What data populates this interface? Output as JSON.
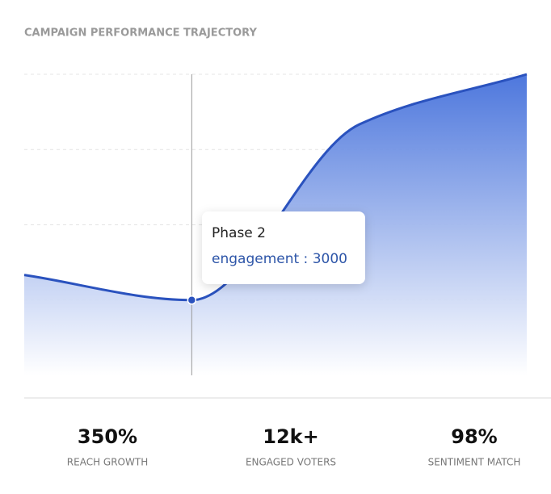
{
  "title": "CAMPAIGN PERFORMANCE TRAJECTORY",
  "chart_data": {
    "type": "area",
    "categories": [
      null,
      "Phase 2",
      null,
      null
    ],
    "series": [
      {
        "name": "engagement",
        "color": "#2a52be",
        "values": [
          4000,
          3000,
          10000,
          12000
        ]
      }
    ],
    "ylim": [
      0,
      12000
    ],
    "yticks": [
      3000,
      6000,
      9000,
      12000
    ],
    "grid": true
  },
  "stats": [
    {
      "value": "350%",
      "label": "REACH GROWTH"
    },
    {
      "value": "12k+",
      "label": "ENGAGED VOTERS"
    },
    {
      "value": "98%",
      "label": "SENTIMENT MATCH"
    }
  ]
}
